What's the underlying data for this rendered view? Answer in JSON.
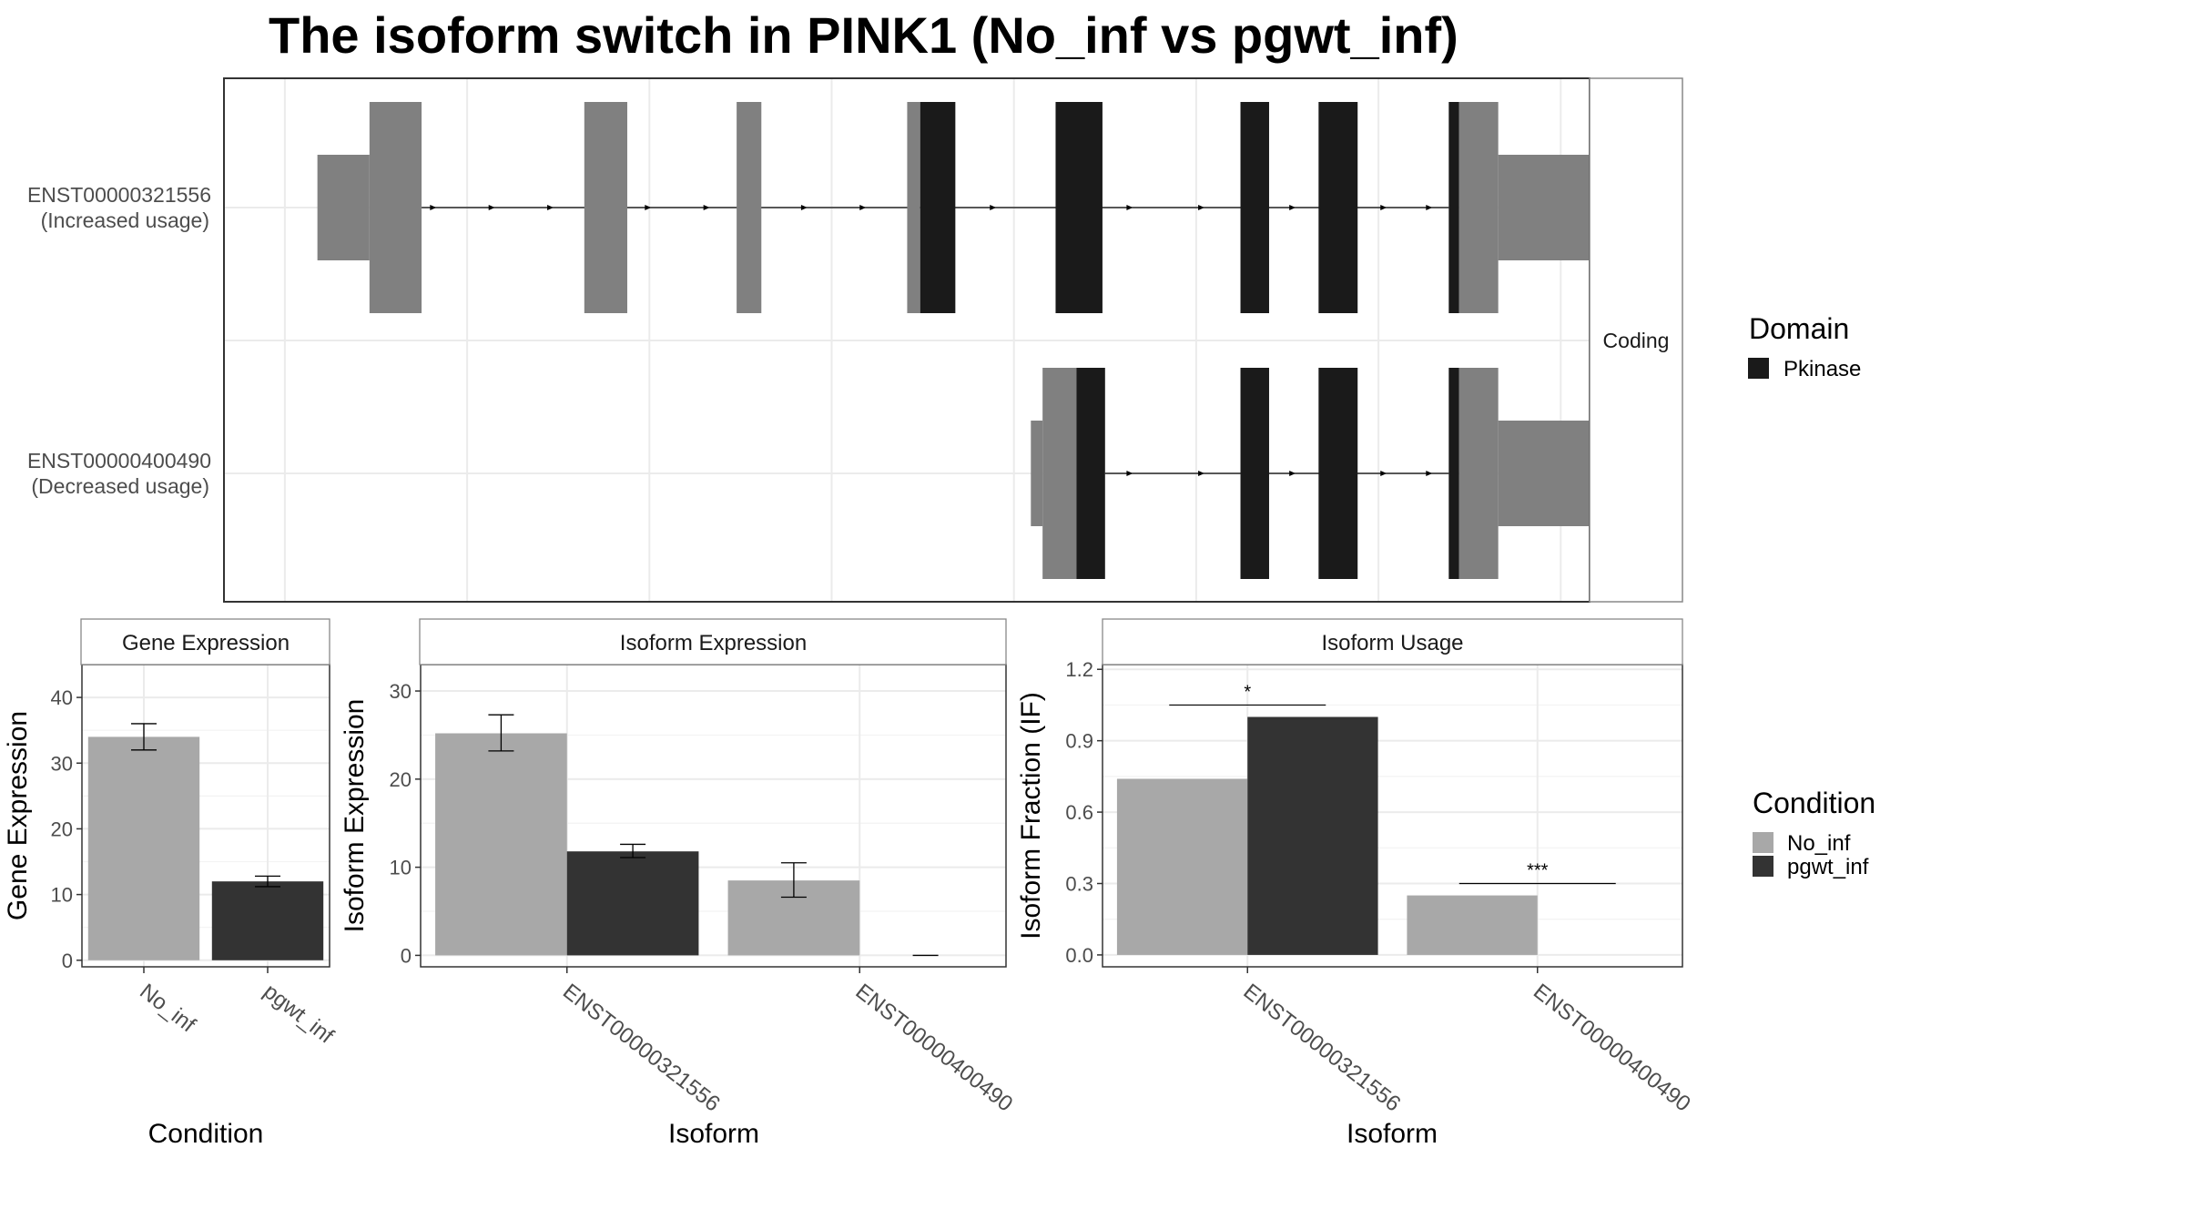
{
  "title": "The isoform switch in PINK1 (No_inf vs pgwt_inf)",
  "colors": {
    "domain_pkinase": "#1a1a1a",
    "utr_noncoding": "#808080",
    "No_inf": "#a8a8a8",
    "pgwt_inf": "#333333",
    "grid": "#ebebeb",
    "panel_border": "#333333",
    "strip_border": "#888888"
  },
  "structure": {
    "strip_label": "Coding",
    "transcripts": [
      {
        "name": "ENST00000321556",
        "usage": "(Increased usage)",
        "exons": [
          {
            "start": 0.055,
            "end": 0.095,
            "half": true
          },
          {
            "start": 0.095,
            "end": 0.135,
            "half": false
          },
          {
            "start": 0.26,
            "end": 0.293,
            "half": false
          },
          {
            "start": 0.377,
            "end": 0.396,
            "half": false
          },
          {
            "start": 0.508,
            "end": 0.518,
            "half": false
          },
          {
            "start": 0.518,
            "end": 0.545,
            "half": false,
            "coding": true
          },
          {
            "start": 0.622,
            "end": 0.658,
            "half": false,
            "coding": true
          },
          {
            "start": 0.764,
            "end": 0.786,
            "half": false,
            "coding": true
          },
          {
            "start": 0.824,
            "end": 0.854,
            "half": false,
            "coding": true
          },
          {
            "start": 0.924,
            "end": 0.932,
            "half": false,
            "coding": true
          },
          {
            "start": 0.932,
            "end": 0.962,
            "half": false
          },
          {
            "start": 0.962,
            "end": 1.05,
            "half": true
          }
        ],
        "intron": [
          0.135,
          0.924
        ],
        "arrows": [
          0.145,
          0.19,
          0.235,
          0.31,
          0.355,
          0.43,
          0.475,
          0.525,
          0.575,
          0.68,
          0.735,
          0.805,
          0.84,
          0.875,
          0.91
        ]
      },
      {
        "name": "ENST00000400490",
        "usage": "(Decreased usage)",
        "exons": [
          {
            "start": 0.603,
            "end": 0.612,
            "half": true
          },
          {
            "start": 0.612,
            "end": 0.638,
            "half": false
          },
          {
            "start": 0.638,
            "end": 0.66,
            "half": false,
            "coding": true
          },
          {
            "start": 0.764,
            "end": 0.786,
            "half": false,
            "coding": true
          },
          {
            "start": 0.824,
            "end": 0.854,
            "half": false,
            "coding": true
          },
          {
            "start": 0.924,
            "end": 0.932,
            "half": false,
            "coding": true
          },
          {
            "start": 0.932,
            "end": 0.962,
            "half": false
          },
          {
            "start": 0.962,
            "end": 1.05,
            "half": true
          }
        ],
        "intron": [
          0.66,
          0.924
        ],
        "arrows": [
          0.68,
          0.735,
          0.805,
          0.84,
          0.875,
          0.91
        ]
      }
    ]
  },
  "legends": {
    "domain": {
      "title": "Domain",
      "items": [
        "Pkinase"
      ]
    },
    "condition": {
      "title": "Condition",
      "items": [
        "No_inf",
        "pgwt_inf"
      ]
    }
  },
  "chart_data": [
    {
      "type": "bar",
      "strip": "Gene Expression",
      "xlabel": "Condition",
      "ylabel": "Gene Expression",
      "categories": [
        "No_inf",
        "pgwt_inf"
      ],
      "values": [
        34,
        12
      ],
      "error": [
        [
          32,
          36
        ],
        [
          11.2,
          12.8
        ]
      ],
      "ylim": [
        -1,
        45
      ],
      "yticks": [
        0,
        10,
        20,
        30,
        40
      ],
      "grid": true
    },
    {
      "type": "bar",
      "strip": "Isoform Expression",
      "xlabel": "Isoform",
      "ylabel": "Isoform Expression",
      "categories": [
        "ENST00000321556",
        "ENST00000400490"
      ],
      "series": [
        {
          "name": "No_inf",
          "values": [
            25.2,
            8.5
          ],
          "error": [
            [
              23.2,
              27.3
            ],
            [
              6.6,
              10.5
            ]
          ]
        },
        {
          "name": "pgwt_inf",
          "values": [
            11.8,
            0
          ],
          "error": [
            [
              11.1,
              12.6
            ],
            [
              0,
              0
            ]
          ]
        }
      ],
      "ylim": [
        -1.3,
        33
      ],
      "yticks": [
        0,
        10,
        20,
        30
      ],
      "grid": true
    },
    {
      "type": "bar",
      "strip": "Isoform Usage",
      "xlabel": "Isoform",
      "ylabel": "Isoform Fraction (IF)",
      "categories": [
        "ENST00000321556",
        "ENST00000400490"
      ],
      "series": [
        {
          "name": "No_inf",
          "values": [
            0.74,
            0.25
          ]
        },
        {
          "name": "pgwt_inf",
          "values": [
            1.0,
            0.0
          ]
        }
      ],
      "significance": [
        "*",
        "***"
      ],
      "sig_level": [
        1.05,
        0.3
      ],
      "ylim": [
        -0.05,
        1.22
      ],
      "yticks": [
        0.0,
        0.3,
        0.6,
        0.9,
        1.2
      ],
      "yticklabels": [
        "0.0",
        "0.3",
        "0.6",
        "0.9",
        "1.2"
      ],
      "grid": true
    }
  ]
}
